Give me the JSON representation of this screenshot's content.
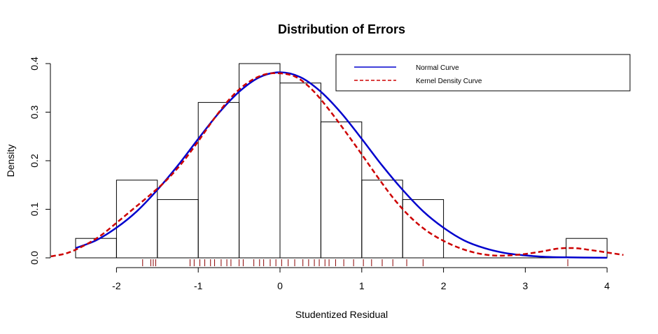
{
  "chart_data": {
    "type": "histogram",
    "title": "Distribution of Errors",
    "xlabel": "Studentized Residual",
    "ylabel": "Density",
    "xlim": [
      -2.5,
      4.0
    ],
    "ylim": [
      0,
      0.4
    ],
    "x_ticks": [
      "-2",
      "-1",
      "0",
      "1",
      "2",
      "3",
      "4"
    ],
    "y_ticks": [
      "0.0",
      "0.1",
      "0.2",
      "0.3",
      "0.4"
    ],
    "grid": false,
    "legend_position": "top-right",
    "bins": [
      {
        "x0": -2.5,
        "x1": -2.0,
        "density": 0.04
      },
      {
        "x0": -2.0,
        "x1": -1.5,
        "density": 0.16
      },
      {
        "x0": -1.5,
        "x1": -1.0,
        "density": 0.12
      },
      {
        "x0": -1.0,
        "x1": -0.5,
        "density": 0.32
      },
      {
        "x0": -0.5,
        "x1": 0.0,
        "density": 0.4
      },
      {
        "x0": 0.0,
        "x1": 0.5,
        "density": 0.36
      },
      {
        "x0": 0.5,
        "x1": 1.0,
        "density": 0.28
      },
      {
        "x0": 1.0,
        "x1": 1.5,
        "density": 0.16
      },
      {
        "x0": 1.5,
        "x1": 2.0,
        "density": 0.12
      },
      {
        "x0": 2.0,
        "x1": 2.5,
        "density": 0.0
      },
      {
        "x0": 2.5,
        "x1": 3.0,
        "density": 0.0
      },
      {
        "x0": 3.0,
        "x1": 3.5,
        "density": 0.0
      },
      {
        "x0": 3.5,
        "x1": 4.0,
        "density": 0.04
      }
    ],
    "series": [
      {
        "name": "Normal Curve",
        "color": "#0000cd",
        "style": "solid",
        "x": [
          -2.5,
          -2.25,
          -2.0,
          -1.75,
          -1.5,
          -1.25,
          -1.0,
          -0.75,
          -0.5,
          -0.25,
          0.0,
          0.25,
          0.5,
          0.75,
          1.0,
          1.25,
          1.5,
          1.75,
          2.0,
          2.25,
          2.5,
          2.75,
          3.0,
          3.25,
          3.5,
          3.75,
          4.0
        ],
        "y": [
          0.02,
          0.036,
          0.062,
          0.096,
          0.14,
          0.19,
          0.245,
          0.298,
          0.342,
          0.372,
          0.382,
          0.372,
          0.342,
          0.298,
          0.245,
          0.19,
          0.14,
          0.096,
          0.062,
          0.036,
          0.02,
          0.01,
          0.005,
          0.002,
          0.001,
          0.0005,
          0.0002
        ]
      },
      {
        "name": "Kernel Density Curve",
        "color": "#cd0000",
        "style": "dashed",
        "x": [
          -2.8,
          -2.6,
          -2.4,
          -2.2,
          -2.0,
          -1.8,
          -1.6,
          -1.4,
          -1.2,
          -1.0,
          -0.8,
          -0.6,
          -0.4,
          -0.2,
          0.0,
          0.2,
          0.4,
          0.6,
          0.8,
          1.0,
          1.2,
          1.4,
          1.6,
          1.8,
          2.0,
          2.2,
          2.4,
          2.6,
          2.8,
          3.0,
          3.2,
          3.4,
          3.6,
          3.8,
          4.0,
          4.2
        ],
        "y": [
          0.003,
          0.01,
          0.025,
          0.045,
          0.072,
          0.1,
          0.128,
          0.158,
          0.195,
          0.24,
          0.288,
          0.33,
          0.36,
          0.377,
          0.38,
          0.372,
          0.345,
          0.305,
          0.26,
          0.213,
          0.165,
          0.12,
          0.083,
          0.055,
          0.035,
          0.02,
          0.01,
          0.005,
          0.005,
          0.008,
          0.013,
          0.019,
          0.02,
          0.016,
          0.011,
          0.006
        ]
      }
    ],
    "rug": [
      -1.68,
      -1.58,
      -1.55,
      -1.52,
      -1.1,
      -1.05,
      -0.98,
      -0.92,
      -0.85,
      -0.8,
      -0.72,
      -0.65,
      -0.6,
      -0.5,
      -0.45,
      -0.32,
      -0.25,
      -0.2,
      -0.12,
      -0.05,
      0.02,
      0.1,
      0.18,
      0.28,
      0.35,
      0.42,
      0.48,
      0.55,
      0.6,
      0.68,
      0.78,
      0.9,
      1.02,
      1.12,
      1.25,
      1.38,
      1.55,
      1.75,
      3.52
    ]
  }
}
